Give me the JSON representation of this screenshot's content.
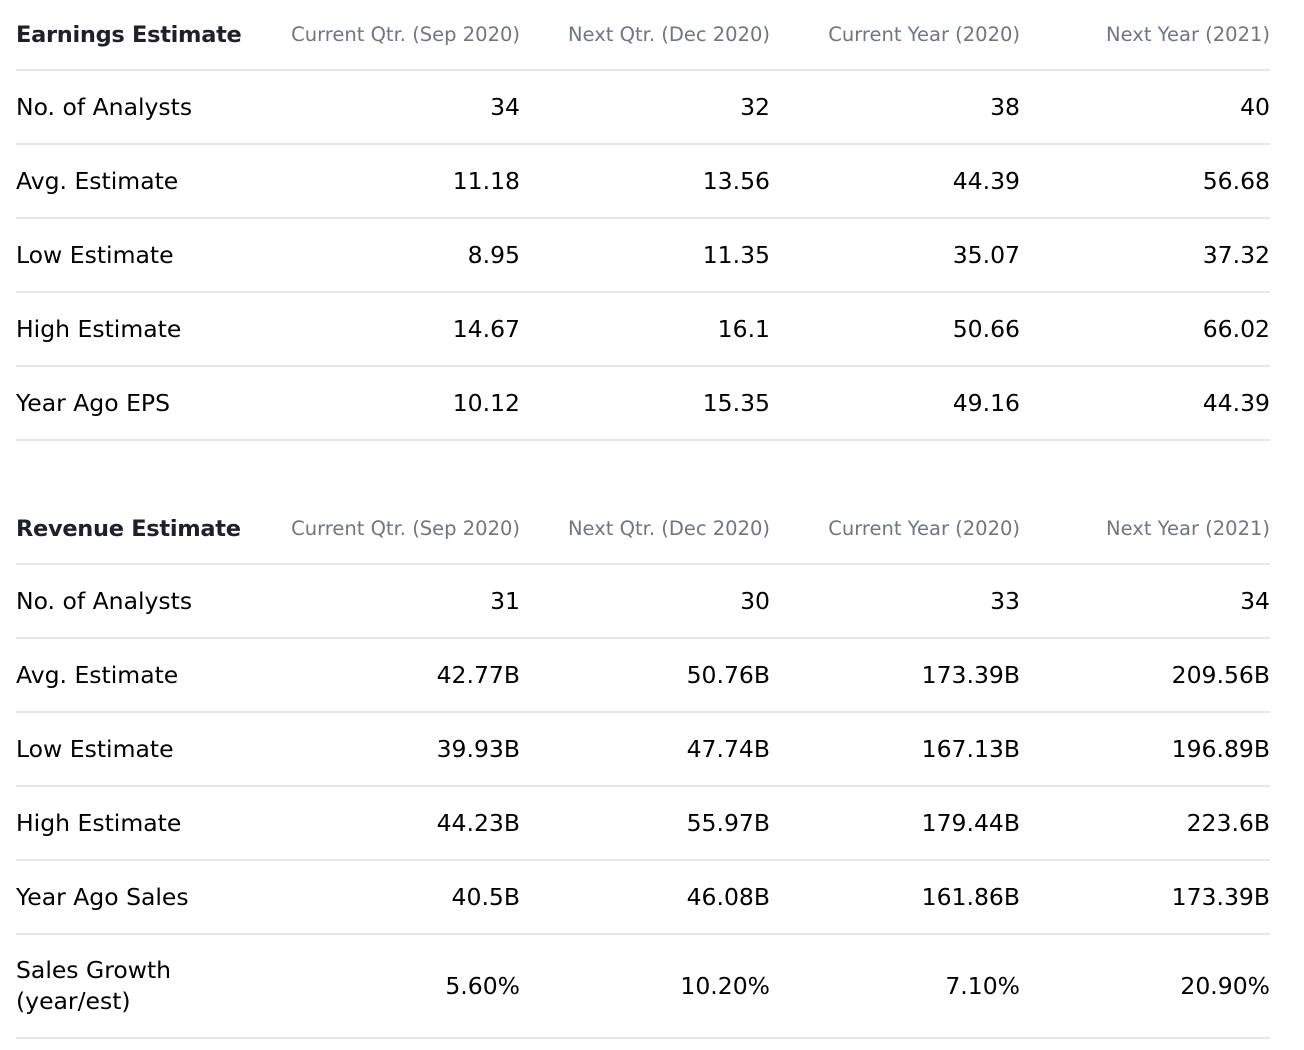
{
  "columns": [
    "Current Qtr. (Sep 2020)",
    "Next Qtr. (Dec 2020)",
    "Current Year (2020)",
    "Next Year (2021)"
  ],
  "earnings": {
    "title": "Earnings Estimate",
    "rows": [
      {
        "label": "No. of Analysts",
        "values": [
          "34",
          "32",
          "38",
          "40"
        ]
      },
      {
        "label": "Avg. Estimate",
        "values": [
          "11.18",
          "13.56",
          "44.39",
          "56.68"
        ]
      },
      {
        "label": "Low Estimate",
        "values": [
          "8.95",
          "11.35",
          "35.07",
          "37.32"
        ]
      },
      {
        "label": "High Estimate",
        "values": [
          "14.67",
          "16.1",
          "50.66",
          "66.02"
        ]
      },
      {
        "label": "Year Ago EPS",
        "values": [
          "10.12",
          "15.35",
          "49.16",
          "44.39"
        ]
      }
    ]
  },
  "revenue": {
    "title": "Revenue Estimate",
    "rows": [
      {
        "label": "No. of Analysts",
        "values": [
          "31",
          "30",
          "33",
          "34"
        ]
      },
      {
        "label": "Avg. Estimate",
        "values": [
          "42.77B",
          "50.76B",
          "173.39B",
          "209.56B"
        ]
      },
      {
        "label": "Low Estimate",
        "values": [
          "39.93B",
          "47.74B",
          "167.13B",
          "196.89B"
        ]
      },
      {
        "label": "High Estimate",
        "values": [
          "44.23B",
          "55.97B",
          "179.44B",
          "223.6B"
        ]
      },
      {
        "label": "Year Ago Sales",
        "values": [
          "40.5B",
          "46.08B",
          "161.86B",
          "173.39B"
        ]
      },
      {
        "label": "Sales Growth (year/est)",
        "values": [
          "5.60%",
          "10.20%",
          "7.10%",
          "20.90%"
        ]
      }
    ]
  }
}
